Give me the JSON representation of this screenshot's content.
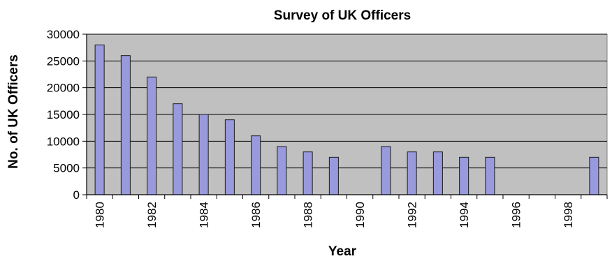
{
  "chart_data": {
    "type": "bar",
    "title": "Survey of UK Officers",
    "xlabel": "Year",
    "ylabel": "No. of UK Officers",
    "categories": [
      "1980",
      "1981",
      "1982",
      "1983",
      "1984",
      "1985",
      "1986",
      "1987",
      "1988",
      "1989",
      "1990",
      "1991",
      "1992",
      "1993",
      "1994",
      "1995",
      "1996",
      "1997",
      "1998",
      "1999"
    ],
    "x_tick_labels": [
      "1980",
      "1982",
      "1984",
      "1986",
      "1988",
      "1990",
      "1992",
      "1994",
      "1996",
      "1998"
    ],
    "y_tick_labels": [
      "0",
      "5000",
      "10000",
      "15000",
      "20000",
      "25000",
      "30000"
    ],
    "values": [
      28000,
      26000,
      22000,
      17000,
      15000,
      14000,
      11000,
      9000,
      8000,
      7000,
      0,
      9000,
      8000,
      8000,
      7000,
      7000,
      0,
      0,
      0,
      7000
    ],
    "ylim": [
      0,
      30000
    ],
    "grid": "horizontal",
    "legend": "none",
    "colors": {
      "plot_background": "#c0c0c0",
      "bar_fill": "#9999dd",
      "bar_stroke": "#1a1a1a",
      "gridline": "#000000"
    }
  }
}
